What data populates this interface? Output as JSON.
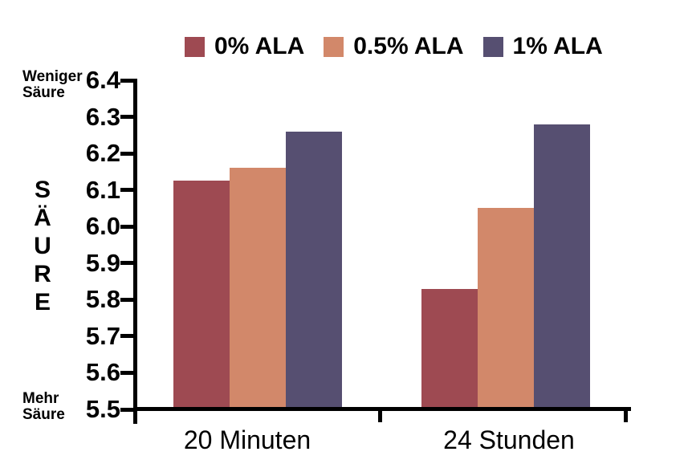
{
  "chart_data": {
    "type": "bar",
    "title": "",
    "categories": [
      "20 Minuten",
      "24 Stunden"
    ],
    "series": [
      {
        "name": "0% ALA",
        "color": "#9e4a52",
        "values": [
          6.125,
          5.83
        ]
      },
      {
        "name": "0.5% ALA",
        "color": "#d2886a",
        "values": [
          6.16,
          6.05
        ]
      },
      {
        "name": "1% ALA",
        "color": "#564f71",
        "values": [
          6.26,
          6.28
        ]
      }
    ],
    "xlabel": "",
    "ylabel": "SÄURE",
    "ylim": [
      5.5,
      6.4
    ],
    "ytick_labels": [
      "6.4",
      "6.3",
      "6.2",
      "6.1",
      "6.0",
      "5.9",
      "5.8",
      "5.7",
      "5.6",
      "5.5"
    ],
    "annotations": {
      "top_left": [
        "Weniger",
        "Säure"
      ],
      "bottom_left": [
        "Mehr",
        "Säure"
      ]
    },
    "legend_position": "top",
    "grid": false,
    "axis_color": "#000000",
    "background_color": "#ffffff"
  }
}
